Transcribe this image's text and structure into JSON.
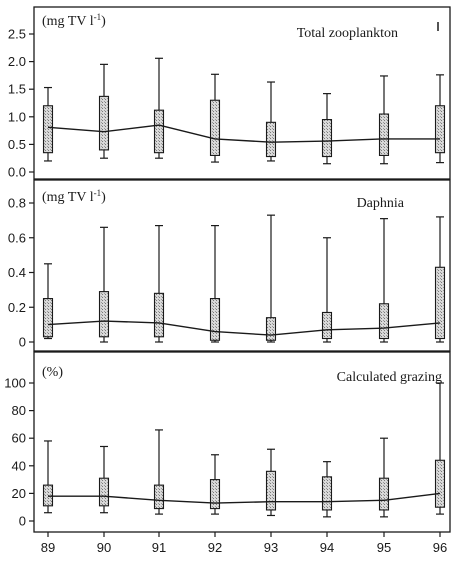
{
  "chart_data": [
    {
      "type": "boxplot",
      "title": "Total zooplankton",
      "unit": "(mg TV l-1)",
      "unit_main": "(mg TV l",
      "unit_sup": "-1",
      "unit_close": ")",
      "categories": [
        "89",
        "90",
        "91",
        "92",
        "93",
        "94",
        "95",
        "96"
      ],
      "ylim": [
        0,
        2.75
      ],
      "yticks": [
        "2.5",
        "2.0",
        "1.5",
        "1.0",
        "0.5",
        "0.0"
      ],
      "ytick_values": [
        2.5,
        2.0,
        1.5,
        1.0,
        0.5,
        0.0
      ],
      "series": [
        {
          "min": [
            0.2,
            0.25,
            0.25,
            0.18,
            0.2,
            0.15,
            0.15,
            0.17
          ],
          "q1": [
            0.35,
            0.4,
            0.35,
            0.3,
            0.28,
            0.28,
            0.3,
            0.35
          ],
          "median": [
            0.81,
            0.73,
            0.85,
            0.6,
            0.54,
            0.56,
            0.6,
            0.6
          ],
          "q3": [
            1.2,
            1.37,
            1.12,
            1.3,
            0.9,
            0.95,
            1.05,
            1.2
          ],
          "max": [
            1.53,
            1.95,
            2.06,
            1.77,
            1.63,
            1.42,
            1.74,
            1.76
          ]
        }
      ],
      "grid": false
    },
    {
      "type": "boxplot",
      "title": "Daphnia",
      "unit": "(mg TV l-1)",
      "unit_main": "(mg TV l",
      "unit_sup": "-1",
      "unit_close": ")",
      "categories": [
        "89",
        "90",
        "91",
        "92",
        "93",
        "94",
        "95",
        "96"
      ],
      "ylim": [
        0,
        0.8
      ],
      "yticks": [
        "0.8",
        "0.6",
        "0.4",
        "0.2",
        "0"
      ],
      "ytick_values": [
        0.8,
        0.6,
        0.4,
        0.2,
        0
      ],
      "series": [
        {
          "min": [
            0.02,
            0.0,
            0.0,
            0.0,
            0.0,
            0.0,
            0.0,
            0.0
          ],
          "q1": [
            0.03,
            0.03,
            0.03,
            0.01,
            0.01,
            0.02,
            0.02,
            0.02
          ],
          "median": [
            0.1,
            0.12,
            0.11,
            0.06,
            0.04,
            0.07,
            0.08,
            0.11
          ],
          "q3": [
            0.25,
            0.29,
            0.28,
            0.25,
            0.14,
            0.17,
            0.22,
            0.43
          ],
          "max": [
            0.45,
            0.66,
            0.67,
            0.67,
            0.73,
            0.6,
            0.71,
            0.72
          ]
        }
      ],
      "grid": false
    },
    {
      "type": "boxplot",
      "title": "Calculated grazing",
      "unit": "(%)",
      "unit_main": "(%)",
      "unit_sup": "",
      "unit_close": "",
      "categories": [
        "89",
        "90",
        "91",
        "92",
        "93",
        "94",
        "95",
        "96"
      ],
      "ylim": [
        0,
        106
      ],
      "yticks": [
        "100",
        "80",
        "60",
        "40",
        "20",
        "0"
      ],
      "ytick_values": [
        100,
        80,
        60,
        40,
        20,
        0
      ],
      "series": [
        {
          "min": [
            6,
            6,
            5,
            5,
            4,
            3,
            3,
            5
          ],
          "q1": [
            11,
            11,
            9,
            9,
            8,
            8,
            8,
            10
          ],
          "median": [
            18,
            18,
            15,
            13,
            14,
            14,
            15,
            20
          ],
          "q3": [
            26,
            31,
            26,
            30,
            36,
            32,
            31,
            44
          ],
          "max": [
            58,
            54,
            66,
            48,
            52,
            43,
            60,
            100
          ]
        }
      ],
      "grid": false
    }
  ],
  "colors": {
    "box_fill": "#cfcfcf",
    "ink": "#1a1a1a",
    "background": "#ffffff"
  }
}
